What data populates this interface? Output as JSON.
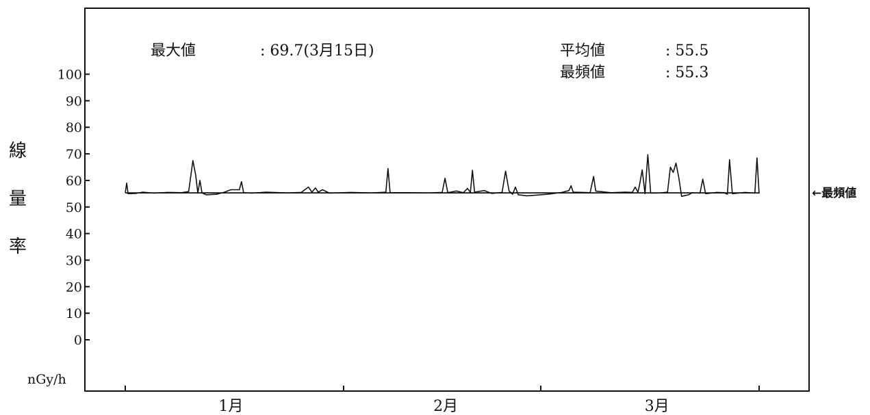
{
  "chart_data": {
    "type": "line",
    "ylabel": "線量率",
    "unit": "nGy/h",
    "ylim": [
      0,
      100
    ],
    "yticks": [
      0,
      10,
      20,
      30,
      40,
      50,
      60,
      70,
      80,
      90,
      100
    ],
    "ytick_labels": [
      "0",
      "10",
      "20",
      "30",
      "40",
      "50",
      "60",
      "70",
      "80",
      "90",
      "100"
    ],
    "x_range_days": [
      1,
      91
    ],
    "month_labels": [
      {
        "label": "1月",
        "day": 16
      },
      {
        "label": "2月",
        "day": 46.5
      },
      {
        "label": "3月",
        "day": 76.5
      }
    ],
    "month_boundaries_days": [
      1,
      32,
      60,
      91
    ],
    "grid": false,
    "stats": {
      "max_label": "最大値",
      "max_value": ": 69.7(3月15日)",
      "mean_label": "平均値",
      "mean_value": ":  55.5",
      "mode_label": "最頻値",
      "mode_value": ":  55.3"
    },
    "mode_line": {
      "value": 55.3,
      "label": "←最頻値"
    },
    "series": [
      {
        "points": [
          [
            1.0,
            55.4
          ],
          [
            1.2,
            59.0
          ],
          [
            1.4,
            55.0
          ],
          [
            2.5,
            55.1
          ],
          [
            3.5,
            55.6
          ],
          [
            5.0,
            55.2
          ],
          [
            7.0,
            55.5
          ],
          [
            9.0,
            55.4
          ],
          [
            10.0,
            55.8
          ],
          [
            10.6,
            67.5
          ],
          [
            11.0,
            62.0
          ],
          [
            11.3,
            55.2
          ],
          [
            11.6,
            60.0
          ],
          [
            11.9,
            55.3
          ],
          [
            12.5,
            54.6
          ],
          [
            14.0,
            54.8
          ],
          [
            15.0,
            55.5
          ],
          [
            16.0,
            56.5
          ],
          [
            17.2,
            56.5
          ],
          [
            17.5,
            59.5
          ],
          [
            17.8,
            55.4
          ],
          [
            19.0,
            55.2
          ],
          [
            21.0,
            55.6
          ],
          [
            24.0,
            55.3
          ],
          [
            26.0,
            55.5
          ],
          [
            27.0,
            57.5
          ],
          [
            27.5,
            55.6
          ],
          [
            28.0,
            57.2
          ],
          [
            28.4,
            55.6
          ],
          [
            29.0,
            56.5
          ],
          [
            30.0,
            55.2
          ],
          [
            33.0,
            55.5
          ],
          [
            36.0,
            55.3
          ],
          [
            38.0,
            55.6
          ],
          [
            38.3,
            64.5
          ],
          [
            38.6,
            55.4
          ],
          [
            41.0,
            55.4
          ],
          [
            44.0,
            55.3
          ],
          [
            46.0,
            55.5
          ],
          [
            46.4,
            60.8
          ],
          [
            46.8,
            55.4
          ],
          [
            48.0,
            56.0
          ],
          [
            49.0,
            55.4
          ],
          [
            49.6,
            57.0
          ],
          [
            50.0,
            55.5
          ],
          [
            50.3,
            63.8
          ],
          [
            50.6,
            55.6
          ],
          [
            52.0,
            56.2
          ],
          [
            53.0,
            55.1
          ],
          [
            54.5,
            55.5
          ],
          [
            55.0,
            63.5
          ],
          [
            55.5,
            56.0
          ],
          [
            56.0,
            54.8
          ],
          [
            56.4,
            57.5
          ],
          [
            56.8,
            54.6
          ],
          [
            58.0,
            54.2
          ],
          [
            59.0,
            54.4
          ],
          [
            61.0,
            54.8
          ],
          [
            63.0,
            55.5
          ],
          [
            64.0,
            56.2
          ],
          [
            64.3,
            58.0
          ],
          [
            64.6,
            55.6
          ],
          [
            66.0,
            55.5
          ],
          [
            67.0,
            55.4
          ],
          [
            67.5,
            61.5
          ],
          [
            67.8,
            56.0
          ],
          [
            70.0,
            55.4
          ],
          [
            72.0,
            55.6
          ],
          [
            73.0,
            55.5
          ],
          [
            73.4,
            57.5
          ],
          [
            73.8,
            55.6
          ],
          [
            74.0,
            58.0
          ],
          [
            74.4,
            64.0
          ],
          [
            74.8,
            55.0
          ],
          [
            75.2,
            69.7
          ],
          [
            75.6,
            55.2
          ],
          [
            77.0,
            55.3
          ],
          [
            78.0,
            55.6
          ],
          [
            78.4,
            65.0
          ],
          [
            78.8,
            63.0
          ],
          [
            79.2,
            66.5
          ],
          [
            79.6,
            61.0
          ],
          [
            80.0,
            54.0
          ],
          [
            81.0,
            54.6
          ],
          [
            81.5,
            55.4
          ],
          [
            82.6,
            55.2
          ],
          [
            83.0,
            60.5
          ],
          [
            83.4,
            55.0
          ],
          [
            85.0,
            55.5
          ],
          [
            86.0,
            55.4
          ],
          [
            86.5,
            54.8
          ],
          [
            86.8,
            67.8
          ],
          [
            87.2,
            55.0
          ],
          [
            89.0,
            55.5
          ],
          [
            90.4,
            55.2
          ],
          [
            90.7,
            68.5
          ],
          [
            91.0,
            55.0
          ]
        ]
      }
    ]
  }
}
